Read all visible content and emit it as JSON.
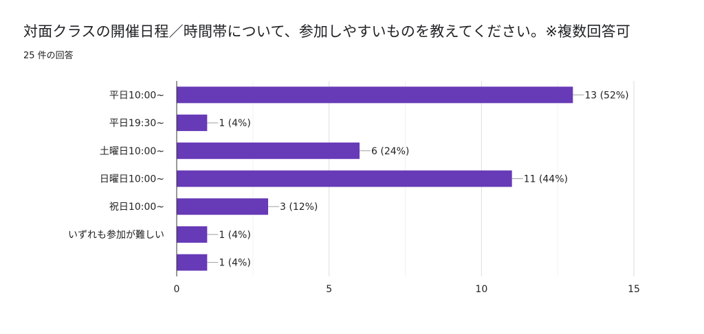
{
  "title": "対面クラスの開催日程／時間帯について、参加しやすいものを教えてください。※複数回答可",
  "subtitle": "25 件の回答",
  "chart_data": {
    "type": "bar",
    "orientation": "horizontal",
    "categories": [
      "平日10:00~",
      "平日19:30~",
      "土曜日10:00~",
      "日曜日10:00~",
      "祝日10:00~",
      "いずれも参加が難しい",
      ""
    ],
    "values": [
      13,
      1,
      6,
      11,
      3,
      1,
      1
    ],
    "value_labels": [
      "13 (52%)",
      "1 (4%)",
      "6 (24%)",
      "11 (44%)",
      "3 (12%)",
      "1 (4%)",
      "1 (4%)"
    ],
    "xlim": [
      0,
      15
    ],
    "xticks": [
      0,
      5,
      10,
      15
    ],
    "grid": true,
    "bar_color": "#673ab7"
  }
}
